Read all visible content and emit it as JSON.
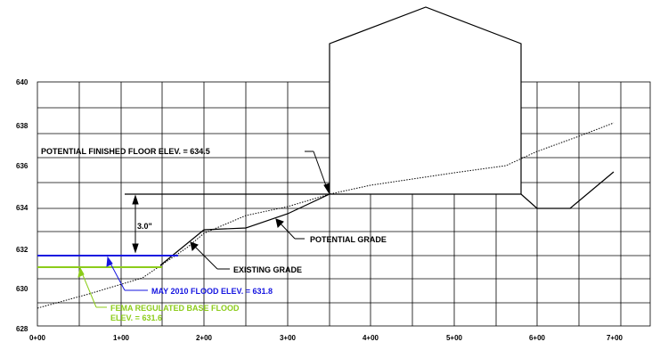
{
  "axes": {
    "y_ticks": [
      "640",
      "638",
      "636",
      "634",
      "632",
      "630",
      "628"
    ],
    "x_ticks": [
      "0+00",
      "1+00",
      "2+00",
      "3+00",
      "4+00",
      "5+00",
      "6+00",
      "7+00"
    ]
  },
  "labels": {
    "finished_floor": "POTENTIAL FINISHED FLOOR ELEV. = 634.5",
    "dimension": "3.0\"",
    "potential_grade": "POTENTIAL GRADE",
    "existing_grade": "EXISTING GRADE",
    "may_flood": "MAY 2010 FLOOD ELEV. = 631.8",
    "fema_line1": "FEMA REGULATED BASE FLOOD",
    "fema_line2": "ELEV. = 631.6"
  },
  "colors": {
    "may_flood": "#1515e0",
    "fema_flood": "#8ccc1a"
  }
}
